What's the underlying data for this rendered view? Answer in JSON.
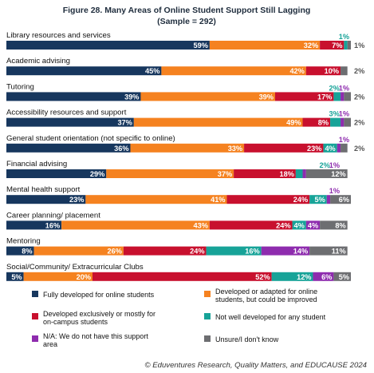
{
  "chart_data": {
    "type": "bar",
    "stacked": true,
    "orientation": "horizontal",
    "title": "Figure 28. Many Areas of Online Student Support Still Lagging",
    "subtitle": "(Sample = 292)",
    "source": "© Eduventures Research, Quality Matters, and EDUCAUSE 2024",
    "categories": [
      "Library resources and services",
      "Academic advising",
      "Tutoring",
      "Accessibility resources and support",
      "General student orientation (not specific to online)",
      "Financial advising",
      "Mental health support",
      "Career planning/ placement",
      "Mentoring",
      "Social/Community/ Extracurricular Clubs"
    ],
    "series": [
      {
        "name": "Fully developed for online students",
        "color": "#17375e",
        "values": [
          59,
          45,
          39,
          37,
          36,
          29,
          23,
          16,
          8,
          5
        ]
      },
      {
        "name": "Developed or adapted for online students, but could be improved",
        "color": "#f58220",
        "values": [
          32,
          42,
          39,
          49,
          33,
          37,
          41,
          43,
          26,
          20
        ]
      },
      {
        "name": "Developed exclusively or mostly for on-campus students",
        "color": "#c8102e",
        "values": [
          7,
          10,
          17,
          8,
          23,
          18,
          24,
          24,
          24,
          52
        ]
      },
      {
        "name": "Not well developed for any student",
        "color": "#17a398",
        "values": [
          1,
          0,
          2,
          3,
          4,
          2,
          5,
          4,
          16,
          12
        ]
      },
      {
        "name": "N/A: We do not have this support area",
        "color": "#8e2cae",
        "values": [
          0,
          0,
          1,
          1,
          1,
          1,
          1,
          4,
          14,
          6
        ]
      },
      {
        "name": "Unsure/I don't know",
        "color": "#6d6e71",
        "values": [
          1,
          2,
          2,
          2,
          2,
          12,
          6,
          8,
          11,
          5
        ]
      }
    ],
    "value_labels": [
      [
        "59%",
        "32%",
        "7%",
        "1%",
        "",
        "1%"
      ],
      [
        "45%",
        "42%",
        "10%",
        "",
        "",
        "2%"
      ],
      [
        "39%",
        "39%",
        "17%",
        "2%",
        "1%",
        "2%"
      ],
      [
        "37%",
        "49%",
        "8%",
        "3%",
        "1%",
        "2%"
      ],
      [
        "36%",
        "33%",
        "23%",
        "4%",
        "1%",
        "2%"
      ],
      [
        "29%",
        "37%",
        "18%",
        "2%",
        "1%",
        "12%"
      ],
      [
        "23%",
        "41%",
        "24%",
        "5%",
        "1%",
        "6%"
      ],
      [
        "16%",
        "43%",
        "24%",
        "4%",
        "4%",
        "8%"
      ],
      [
        "8%",
        "26%",
        "24%",
        "16%",
        "14%",
        "11%"
      ],
      [
        "5%",
        "20%",
        "52%",
        "12%",
        "6%",
        "5%"
      ]
    ],
    "outside_labels": [
      [
        false,
        false,
        false,
        true,
        false,
        true
      ],
      [
        false,
        false,
        false,
        false,
        false,
        true
      ],
      [
        false,
        false,
        false,
        true,
        true,
        true
      ],
      [
        false,
        false,
        false,
        true,
        true,
        true
      ],
      [
        false,
        false,
        false,
        false,
        true,
        true
      ],
      [
        false,
        false,
        false,
        true,
        true,
        false
      ],
      [
        false,
        false,
        false,
        false,
        true,
        false
      ],
      [
        false,
        false,
        false,
        false,
        false,
        false
      ],
      [
        false,
        false,
        false,
        false,
        false,
        false
      ],
      [
        false,
        false,
        false,
        false,
        false,
        false
      ]
    ],
    "xlim": [
      0,
      100
    ],
    "grid": false,
    "legend_position": "bottom"
  }
}
